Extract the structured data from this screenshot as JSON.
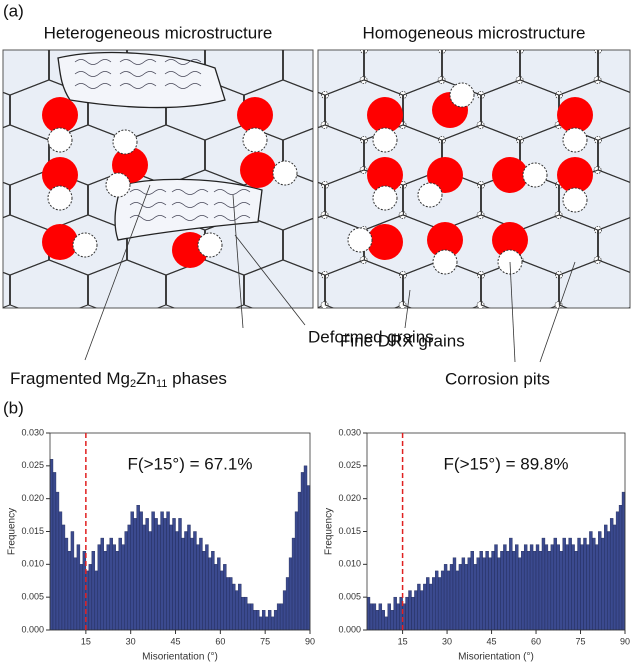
{
  "figure": {
    "panel_a": {
      "label": "(a)",
      "left_title": "Heterogeneous microstructure",
      "right_title": "Homogeneous microstructure",
      "callouts": {
        "deformed": "Deformed grains",
        "drx": "Fine DRX grains",
        "fragmented": {
          "parts": [
            "Fragmented Mg",
            "2",
            "Zn",
            "11",
            " phases"
          ]
        },
        "pits": "Corrosion pits"
      }
    },
    "panel_b": {
      "label": "(b)"
    }
  },
  "chart_data": [
    {
      "type": "histogram",
      "annotation": "F(>15°) = 67.1%",
      "xlabel": "Misorientation (°)",
      "ylabel": "Frequency",
      "color": "#3b4a8f",
      "vline": 15,
      "vline_color": "#e02020",
      "bins": [
        3,
        4,
        5,
        6,
        7,
        8,
        9,
        10,
        11,
        12,
        13,
        14,
        15,
        16,
        17,
        18,
        19,
        20,
        21,
        22,
        23,
        24,
        25,
        26,
        27,
        28,
        29,
        30,
        31,
        32,
        33,
        34,
        35,
        36,
        37,
        38,
        39,
        40,
        41,
        42,
        43,
        44,
        45,
        46,
        47,
        48,
        49,
        50,
        51,
        52,
        53,
        54,
        55,
        56,
        57,
        58,
        59,
        60,
        61,
        62,
        63,
        64,
        65,
        66,
        67,
        68,
        69,
        70,
        71,
        72,
        73,
        74,
        75,
        76,
        77,
        78,
        79,
        80,
        81,
        82,
        83,
        84,
        85,
        86,
        87,
        88,
        89,
        90
      ],
      "values": [
        0.026,
        0.024,
        0.021,
        0.018,
        0.016,
        0.014,
        0.012,
        0.015,
        0.011,
        0.013,
        0.01,
        0.012,
        0.009,
        0.01,
        0.012,
        0.009,
        0.013,
        0.014,
        0.012,
        0.013,
        0.014,
        0.013,
        0.012,
        0.014,
        0.013,
        0.015,
        0.016,
        0.018,
        0.017,
        0.019,
        0.018,
        0.016,
        0.017,
        0.015,
        0.018,
        0.017,
        0.016,
        0.018,
        0.017,
        0.018,
        0.016,
        0.017,
        0.015,
        0.017,
        0.014,
        0.015,
        0.016,
        0.014,
        0.015,
        0.013,
        0.014,
        0.012,
        0.013,
        0.011,
        0.012,
        0.01,
        0.011,
        0.009,
        0.01,
        0.008,
        0.008,
        0.007,
        0.006,
        0.007,
        0.005,
        0.005,
        0.004,
        0.004,
        0.003,
        0.003,
        0.002,
        0.003,
        0.002,
        0.003,
        0.002,
        0.003,
        0.004,
        0.004,
        0.006,
        0.008,
        0.011,
        0.014,
        0.018,
        0.021,
        0.024,
        0.025,
        0.022
      ],
      "xlim": [
        3,
        90
      ],
      "xticks": [
        15,
        30,
        45,
        60,
        75,
        90
      ],
      "ylim": [
        0,
        0.03
      ],
      "yticks": [
        {
          "value": 0,
          "label": "0.000"
        },
        0.005,
        {
          "value": 0.01,
          "label": "0.010"
        },
        0.015,
        {
          "value": 0.02,
          "label": "0.020"
        },
        0.025,
        {
          "value": 0.03,
          "label": "0.030"
        }
      ]
    },
    {
      "type": "histogram",
      "annotation": "F(>15°) = 89.8%",
      "xlabel": "Misorientation (°)",
      "ylabel": "Frequency",
      "color": "#3b4a8f",
      "vline": 15,
      "vline_color": "#e02020",
      "bins": [
        3,
        4,
        5,
        6,
        7,
        8,
        9,
        10,
        11,
        12,
        13,
        14,
        15,
        16,
        17,
        18,
        19,
        20,
        21,
        22,
        23,
        24,
        25,
        26,
        27,
        28,
        29,
        30,
        31,
        32,
        33,
        34,
        35,
        36,
        37,
        38,
        39,
        40,
        41,
        42,
        43,
        44,
        45,
        46,
        47,
        48,
        49,
        50,
        51,
        52,
        53,
        54,
        55,
        56,
        57,
        58,
        59,
        60,
        61,
        62,
        63,
        64,
        65,
        66,
        67,
        68,
        69,
        70,
        71,
        72,
        73,
        74,
        75,
        76,
        77,
        78,
        79,
        80,
        81,
        82,
        83,
        84,
        85,
        86,
        87,
        88,
        89,
        90
      ],
      "values": [
        0.005,
        0.004,
        0.004,
        0.003,
        0.004,
        0.003,
        0.002,
        0.004,
        0.003,
        0.005,
        0.004,
        0.005,
        0.004,
        0.005,
        0.006,
        0.005,
        0.006,
        0.007,
        0.006,
        0.007,
        0.008,
        0.007,
        0.008,
        0.009,
        0.008,
        0.009,
        0.01,
        0.009,
        0.01,
        0.011,
        0.009,
        0.01,
        0.011,
        0.01,
        0.011,
        0.012,
        0.01,
        0.011,
        0.012,
        0.011,
        0.012,
        0.011,
        0.012,
        0.013,
        0.011,
        0.012,
        0.013,
        0.012,
        0.014,
        0.012,
        0.013,
        0.011,
        0.012,
        0.013,
        0.012,
        0.013,
        0.012,
        0.013,
        0.012,
        0.014,
        0.013,
        0.012,
        0.013,
        0.014,
        0.013,
        0.012,
        0.014,
        0.013,
        0.014,
        0.013,
        0.012,
        0.014,
        0.013,
        0.014,
        0.013,
        0.015,
        0.014,
        0.013,
        0.015,
        0.014,
        0.016,
        0.015,
        0.017,
        0.016,
        0.018,
        0.019,
        0.021
      ],
      "xlim": [
        3,
        90
      ],
      "xticks": [
        15,
        30,
        45,
        60,
        75,
        90
      ],
      "ylim": [
        0,
        0.03
      ],
      "yticks": [
        {
          "value": 0,
          "label": "0.000"
        },
        0.005,
        {
          "value": 0.01,
          "label": "0.010"
        },
        0.015,
        {
          "value": 0.02,
          "label": "0.020"
        },
        0.025,
        {
          "value": 0.03,
          "label": "0.030"
        }
      ]
    }
  ]
}
